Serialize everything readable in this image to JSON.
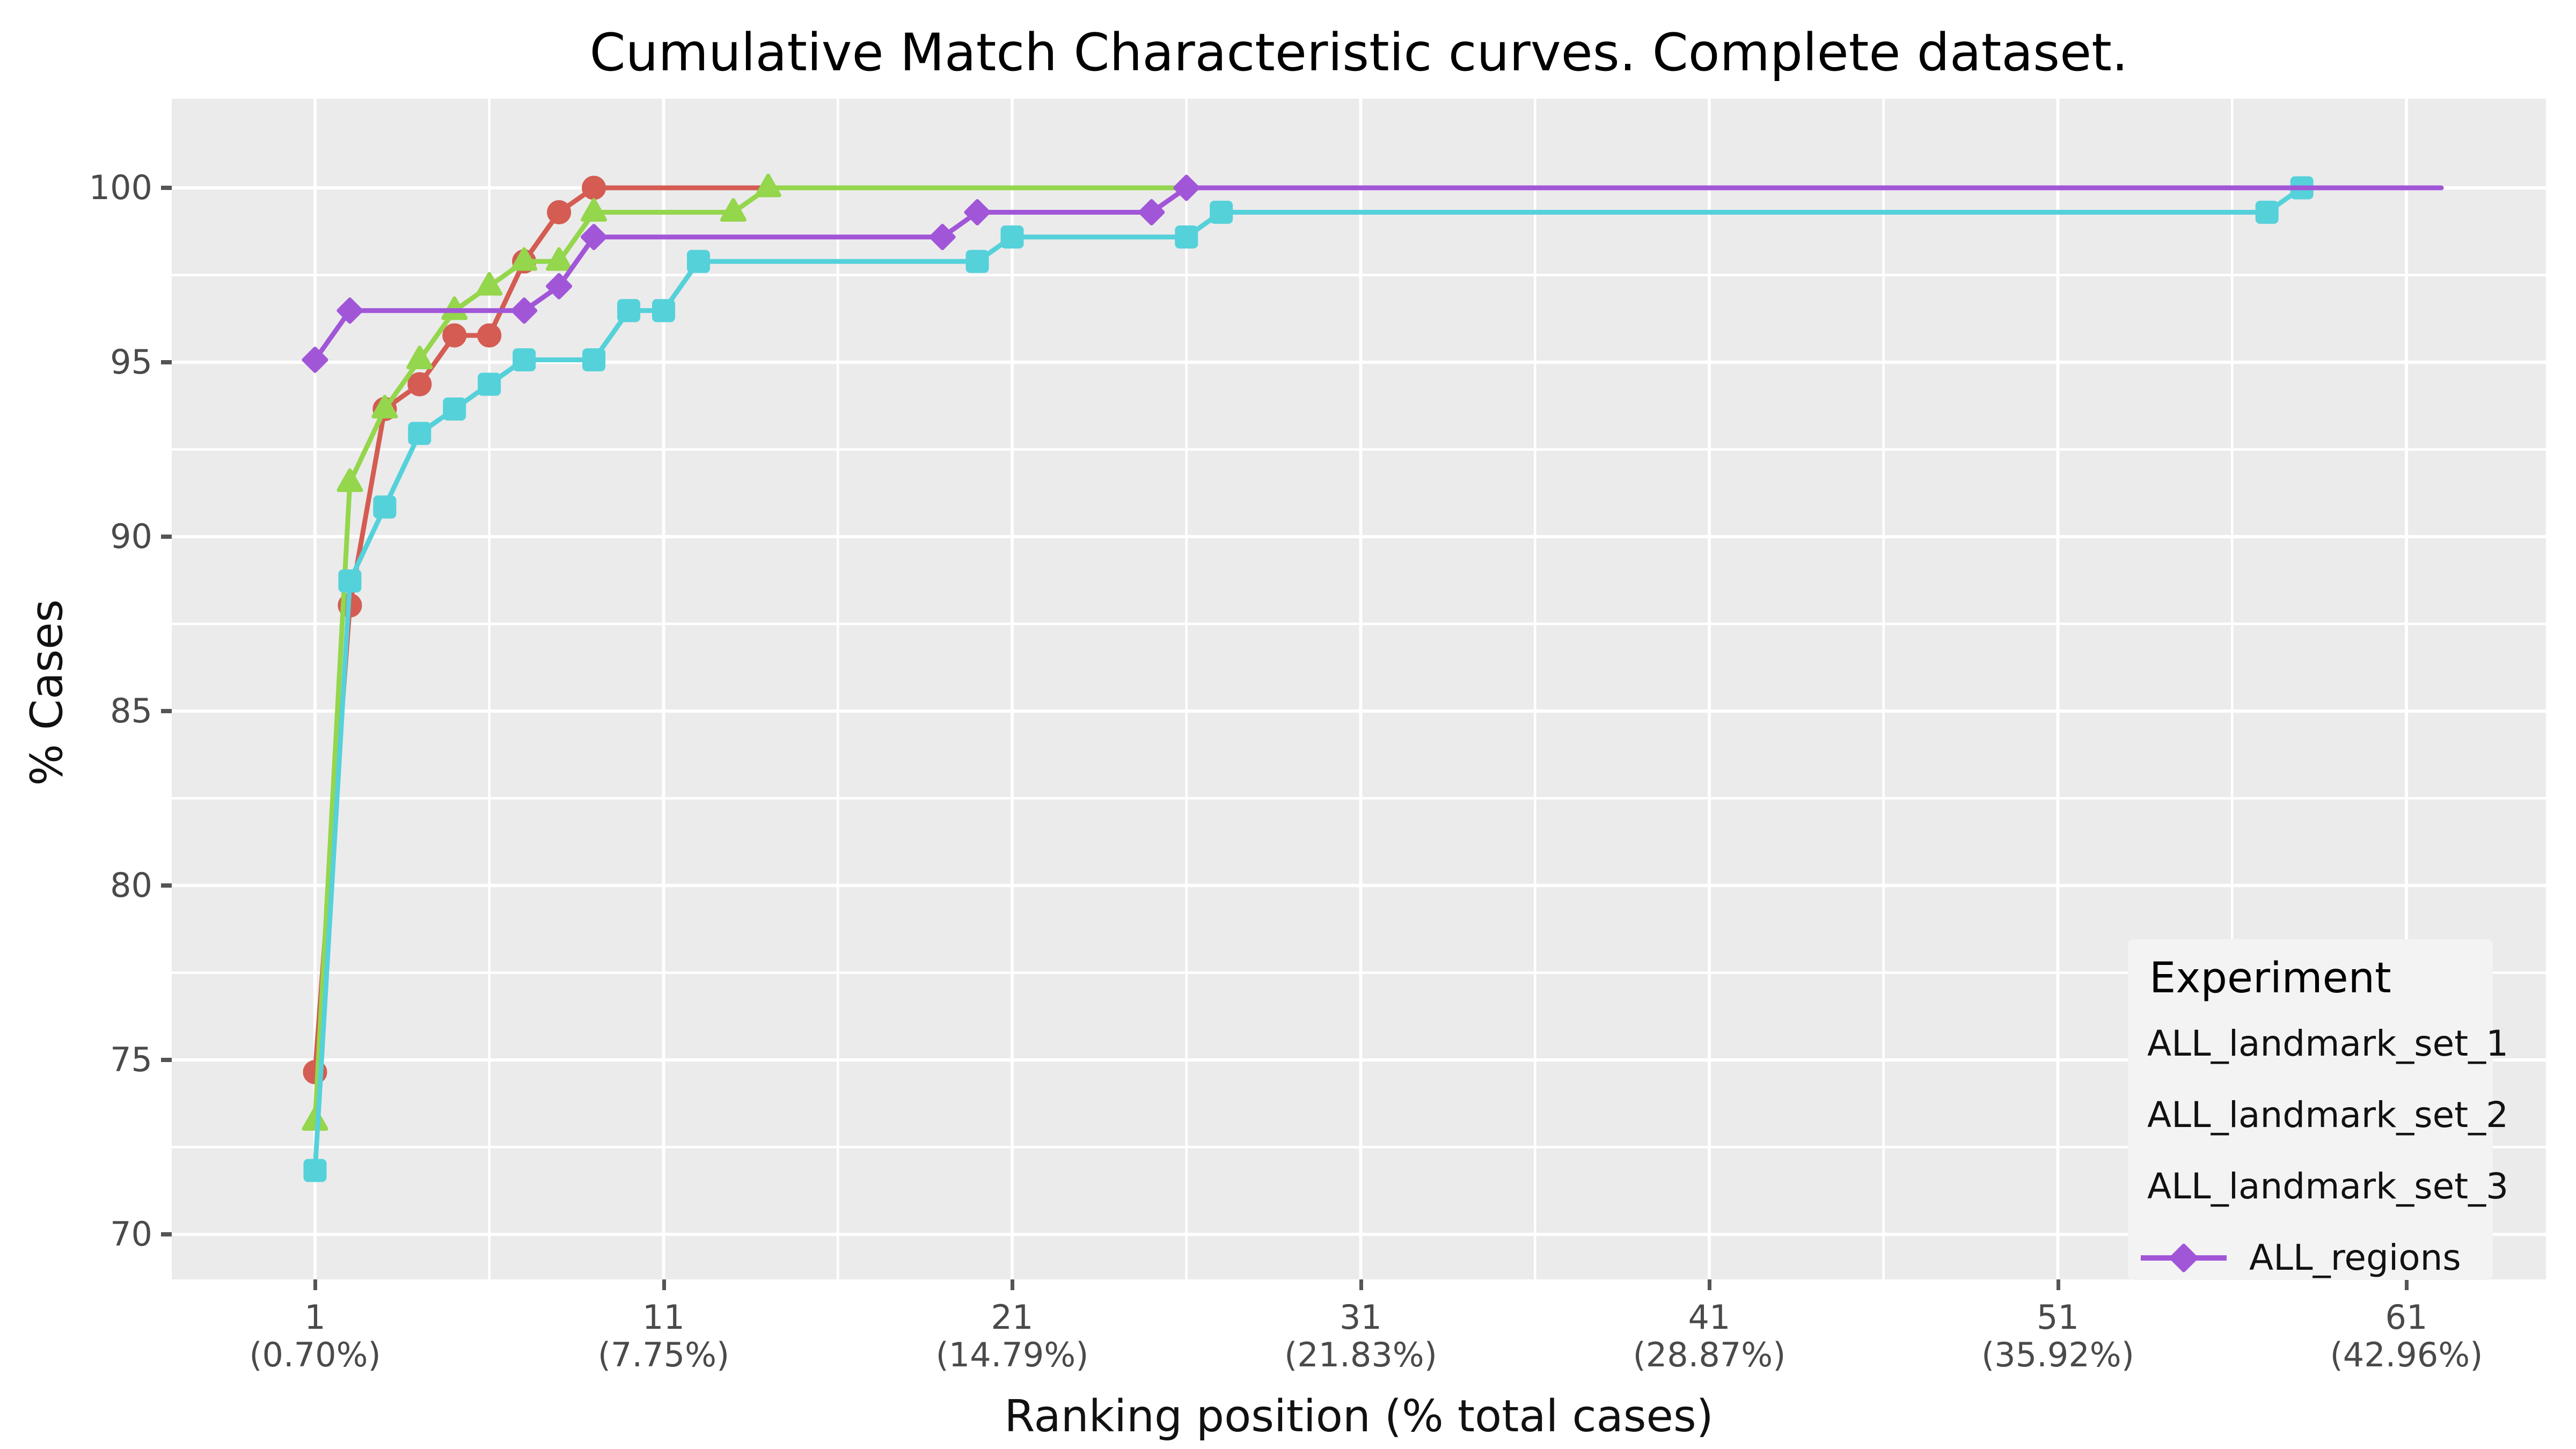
{
  "title": "Cumulative Match Characteristic curves. Complete dataset.",
  "axes": {
    "x_label": "Ranking position (% total cases)",
    "y_label": "% Cases",
    "x_ticks": [
      {
        "rank": "1",
        "pct": "(0.70%)"
      },
      {
        "rank": "11",
        "pct": "(7.75%)"
      },
      {
        "rank": "21",
        "pct": "(14.79%)"
      },
      {
        "rank": "31",
        "pct": "(21.83%)"
      },
      {
        "rank": "41",
        "pct": "(28.87%)"
      },
      {
        "rank": "51",
        "pct": "(35.92%)"
      },
      {
        "rank": "61",
        "pct": "(42.96%)"
      }
    ],
    "y_ticks": [
      "100",
      "95",
      "90",
      "85",
      "80",
      "75",
      "70"
    ]
  },
  "legend": {
    "title": "Experiment",
    "entries": [
      {
        "label": "ALL_landmark_set_1",
        "marker": "circle",
        "color": "#d45c52"
      },
      {
        "label": "ALL_landmark_set_2",
        "marker": "triangle",
        "color": "#94d64c"
      },
      {
        "label": "ALL_landmark_set_3",
        "marker": "square",
        "color": "#55d1da"
      },
      {
        "label": "ALL_regions",
        "marker": "diamond",
        "color": "#a156d8"
      }
    ]
  },
  "colors": {
    "panel_bg": "#ebebeb",
    "grid": "#ffffff",
    "tick_text": "#4a4a4a",
    "tick_mark": "#555555",
    "series_red": "#d45c52",
    "series_green": "#94d64c",
    "series_cyan": "#55d1da",
    "series_purple": "#a156d8"
  },
  "chart_data": {
    "type": "line",
    "title": "Cumulative Match Characteristic curves. Complete dataset.",
    "xlabel": "Ranking position (% total cases)",
    "ylabel": "% Cases",
    "x_major_ticks": [
      1,
      11,
      21,
      31,
      41,
      51,
      61
    ],
    "x_minor_ticks": [
      6,
      16,
      26,
      36,
      46,
      56
    ],
    "y_major_ticks": [
      100,
      95,
      90,
      85,
      80,
      75,
      70
    ],
    "y_minor_ticks": [
      97.5,
      92.5,
      87.5,
      82.5,
      77.5,
      72.5
    ],
    "xlim": [
      -3,
      65
    ],
    "ylim": [
      68.7,
      102.6
    ],
    "grid": true,
    "legend_position": "lower right",
    "series": [
      {
        "name": "ALL_landmark_set_1",
        "marker": "circle",
        "color": "#d45c52",
        "points": [
          [
            1,
            74.65
          ],
          [
            2,
            88.03
          ],
          [
            3,
            93.66
          ],
          [
            4,
            94.37
          ],
          [
            5,
            95.77
          ],
          [
            6,
            95.77
          ],
          [
            7,
            97.89
          ],
          [
            8,
            99.3
          ],
          [
            9,
            100.0
          ]
        ],
        "line_end": [
          62,
          100.0
        ]
      },
      {
        "name": "ALL_landmark_set_2",
        "marker": "triangle",
        "color": "#94d64c",
        "points": [
          [
            1,
            73.24
          ],
          [
            2,
            91.55
          ],
          [
            3,
            93.66
          ],
          [
            4,
            95.07
          ],
          [
            5,
            96.48
          ],
          [
            6,
            97.18
          ],
          [
            7,
            97.89
          ],
          [
            8,
            97.89
          ],
          [
            9,
            99.3
          ],
          [
            13,
            99.3
          ],
          [
            14,
            100.0
          ]
        ],
        "line_end": [
          62,
          100.0
        ]
      },
      {
        "name": "ALL_landmark_set_3",
        "marker": "square",
        "color": "#55d1da",
        "points": [
          [
            1,
            71.83
          ],
          [
            2,
            88.73
          ],
          [
            3,
            90.85
          ],
          [
            4,
            92.96
          ],
          [
            5,
            93.66
          ],
          [
            6,
            94.37
          ],
          [
            7,
            95.07
          ],
          [
            9,
            95.07
          ],
          [
            10,
            96.48
          ],
          [
            11,
            96.48
          ],
          [
            12,
            97.89
          ],
          [
            20,
            97.89
          ],
          [
            21,
            98.59
          ],
          [
            26,
            98.59
          ],
          [
            27,
            99.3
          ],
          [
            57,
            99.3
          ],
          [
            58,
            100.0
          ]
        ],
        "line_end": [
          62,
          100.0
        ]
      },
      {
        "name": "ALL_regions",
        "marker": "diamond",
        "color": "#a156d8",
        "points": [
          [
            1,
            95.07
          ],
          [
            2,
            96.48
          ],
          [
            7,
            96.48
          ],
          [
            8,
            97.18
          ],
          [
            9,
            98.59
          ],
          [
            19,
            98.59
          ],
          [
            20,
            99.3
          ],
          [
            25,
            99.3
          ],
          [
            26,
            100.0
          ]
        ],
        "line_end": [
          62,
          100.0
        ]
      }
    ]
  }
}
